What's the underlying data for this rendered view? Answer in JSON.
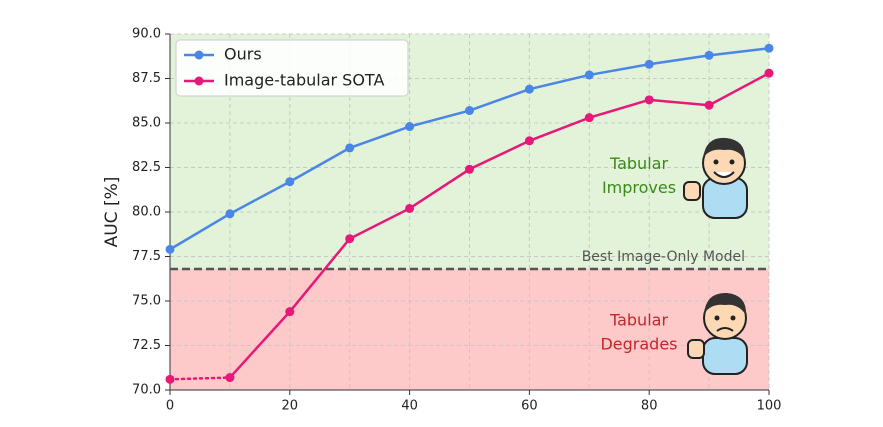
{
  "chart_data": {
    "type": "line",
    "ylabel": "AUC [%]",
    "x": [
      0,
      10,
      20,
      30,
      40,
      50,
      60,
      70,
      80,
      90,
      100
    ],
    "series": [
      {
        "name": "Ours",
        "color": "#4a86e8",
        "values": [
          77.9,
          79.9,
          81.7,
          83.6,
          84.8,
          85.7,
          86.9,
          87.7,
          88.3,
          88.8,
          89.2
        ]
      },
      {
        "name": "Image-tabular SOTA",
        "color": "#e8177a",
        "first_segment_style": "dotted",
        "values": [
          70.6,
          70.7,
          74.4,
          78.5,
          80.2,
          82.4,
          84.0,
          85.3,
          86.3,
          86.0,
          87.8
        ]
      }
    ],
    "xlim": [
      0,
      100
    ],
    "ylim": [
      70,
      90
    ],
    "xticks": [
      0,
      20,
      40,
      60,
      80,
      100
    ],
    "xgrid": [
      0,
      10,
      20,
      30,
      40,
      50,
      60,
      70,
      80,
      90,
      100
    ],
    "yticks": [
      {
        "value": 70,
        "label": "70.0"
      },
      72.5,
      {
        "value": 75,
        "label": "75.0"
      },
      77.5,
      {
        "value": 80,
        "label": "80.0"
      },
      82.5,
      {
        "value": 85,
        "label": "85.0"
      },
      87.5,
      {
        "value": 90,
        "label": "90.0"
      }
    ],
    "grid": true,
    "legend": "upper left",
    "reference_line": {
      "value": 76.8,
      "label": "Best Image-Only Model",
      "color": "#555555"
    },
    "region_above": {
      "color": "#e2f3d9",
      "label": [
        "Tabular",
        "Improves"
      ],
      "text_color": "#3a8a1a"
    },
    "region_below": {
      "color": "#fdc9c9",
      "label": [
        "Tabular",
        "Degrades"
      ],
      "text_color": "#c0282a"
    }
  }
}
